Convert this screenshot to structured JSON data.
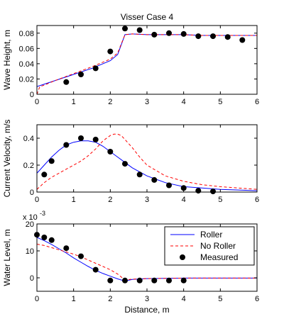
{
  "chart_data": [
    {
      "type": "line",
      "title": "Visser Case 4",
      "xlabel": "",
      "ylabel": "Wave Height, m",
      "xlim": [
        0,
        6
      ],
      "ylim": [
        0,
        0.09
      ],
      "xticks": [
        "0",
        "1",
        "2",
        "3",
        "4",
        "5",
        "6"
      ],
      "xtick_values": [
        0,
        1,
        2,
        3,
        4,
        5,
        6
      ],
      "yticks": [
        "0",
        "0.02",
        "0.04",
        "0.06",
        "0.08"
      ],
      "ytick_values": [
        0,
        0.02,
        0.04,
        0.06,
        0.08
      ],
      "multiplier": "",
      "grid": false,
      "series": [
        {
          "name": "Roller",
          "kind": "line",
          "color": "#0000ff",
          "dash": "solid",
          "x": [
            0.0,
            0.5,
            1.0,
            1.5,
            2.0,
            2.2,
            2.4,
            2.6,
            3.0,
            3.5,
            4.0,
            4.5,
            5.0,
            5.5,
            6.0
          ],
          "y": [
            0.01,
            0.018,
            0.026,
            0.034,
            0.044,
            0.052,
            0.078,
            0.079,
            0.078,
            0.078,
            0.078,
            0.077,
            0.077,
            0.077,
            0.077
          ]
        },
        {
          "name": "No Roller",
          "kind": "line",
          "color": "#ff0000",
          "dash": "4,3",
          "x": [
            0.0,
            0.08,
            0.2,
            0.5,
            1.0,
            1.5,
            2.0,
            2.2,
            2.4,
            2.6,
            3.0,
            3.5,
            4.0,
            4.5,
            5.0,
            5.5,
            6.0
          ],
          "y": [
            0.0,
            0.01,
            0.012,
            0.018,
            0.027,
            0.036,
            0.046,
            0.054,
            0.078,
            0.079,
            0.078,
            0.078,
            0.078,
            0.077,
            0.077,
            0.077,
            0.077
          ]
        },
        {
          "name": "Measured",
          "kind": "scatter",
          "color": "#000000",
          "x": [
            0.8,
            1.2,
            1.6,
            2.0,
            2.4,
            2.8,
            3.2,
            3.6,
            4.0,
            4.4,
            4.8,
            5.2,
            5.6
          ],
          "y": [
            0.016,
            0.026,
            0.034,
            0.056,
            0.086,
            0.084,
            0.078,
            0.08,
            0.079,
            0.076,
            0.076,
            0.075,
            0.071
          ]
        }
      ]
    },
    {
      "type": "line",
      "title": "",
      "xlabel": "",
      "ylabel": "Current Velocity, m/s",
      "xlim": [
        0,
        6
      ],
      "ylim": [
        0,
        0.5
      ],
      "xticks": [
        "0",
        "1",
        "2",
        "3",
        "4",
        "5",
        "6"
      ],
      "xtick_values": [
        0,
        1,
        2,
        3,
        4,
        5,
        6
      ],
      "yticks": [
        "0",
        "0.2",
        "0.4"
      ],
      "ytick_values": [
        0,
        0.2,
        0.4
      ],
      "multiplier": "",
      "grid": false,
      "series": [
        {
          "name": "Roller",
          "kind": "line",
          "color": "#0000ff",
          "dash": "solid",
          "x": [
            0.0,
            0.2,
            0.4,
            0.6,
            0.8,
            1.0,
            1.2,
            1.4,
            1.6,
            1.8,
            2.0,
            2.2,
            2.4,
            2.6,
            3.0,
            3.5,
            4.0,
            4.5,
            5.0,
            5.5,
            6.0
          ],
          "y": [
            0.14,
            0.2,
            0.26,
            0.31,
            0.35,
            0.37,
            0.38,
            0.38,
            0.37,
            0.34,
            0.3,
            0.26,
            0.22,
            0.18,
            0.12,
            0.07,
            0.04,
            0.03,
            0.02,
            0.015,
            0.01
          ]
        },
        {
          "name": "No Roller",
          "kind": "line",
          "color": "#ff0000",
          "dash": "4,3",
          "x": [
            0.0,
            0.2,
            0.4,
            0.6,
            0.8,
            1.0,
            1.2,
            1.4,
            1.6,
            1.8,
            2.0,
            2.1,
            2.2,
            2.3,
            2.4,
            2.6,
            2.8,
            3.0,
            3.5,
            4.0,
            4.5,
            5.0,
            5.5,
            6.0
          ],
          "y": [
            0.02,
            0.07,
            0.11,
            0.14,
            0.17,
            0.2,
            0.23,
            0.27,
            0.32,
            0.38,
            0.42,
            0.43,
            0.43,
            0.42,
            0.39,
            0.33,
            0.26,
            0.2,
            0.12,
            0.08,
            0.055,
            0.04,
            0.03,
            0.02
          ]
        },
        {
          "name": "Measured",
          "kind": "scatter",
          "color": "#000000",
          "x": [
            0.2,
            0.4,
            0.8,
            1.2,
            1.6,
            2.0,
            2.4,
            2.8,
            3.2,
            3.6,
            4.0,
            4.4,
            4.8
          ],
          "y": [
            0.13,
            0.23,
            0.35,
            0.4,
            0.39,
            0.3,
            0.21,
            0.13,
            0.09,
            0.05,
            0.03,
            0.01,
            0.005
          ]
        }
      ]
    },
    {
      "type": "line",
      "title": "",
      "xlabel": "Distance, m",
      "ylabel": "Water Level, m",
      "xlim": [
        0,
        6
      ],
      "ylim": [
        -5,
        20
      ],
      "xticks": [
        "0",
        "1",
        "2",
        "3",
        "4",
        "5",
        "6"
      ],
      "xtick_values": [
        0,
        1,
        2,
        3,
        4,
        5,
        6
      ],
      "yticks": [
        "0",
        "10",
        "20"
      ],
      "ytick_values": [
        0,
        10,
        20
      ],
      "multiplier": "x 10",
      "multiplier_exp": "-3",
      "grid": false,
      "legend": {
        "position": "top-right",
        "entries": [
          {
            "label": "Roller",
            "kind": "line",
            "color": "#0000ff",
            "dash": "solid"
          },
          {
            "label": "No Roller",
            "kind": "line",
            "color": "#ff0000",
            "dash": "4,3"
          },
          {
            "label": "Measured",
            "kind": "marker",
            "color": "#000000"
          }
        ]
      },
      "series": [
        {
          "name": "Roller",
          "kind": "line",
          "color": "#0000ff",
          "dash": "solid",
          "x": [
            0.0,
            0.2,
            0.4,
            0.6,
            0.8,
            1.0,
            1.2,
            1.4,
            1.6,
            1.8,
            2.0,
            2.2,
            2.4,
            2.6,
            3.0,
            3.5,
            4.0,
            4.5,
            5.0,
            5.5,
            6.0
          ],
          "y": [
            15.0,
            13.8,
            12.4,
            10.8,
            9.2,
            7.4,
            5.8,
            4.2,
            2.8,
            1.6,
            0.6,
            -0.4,
            -1.2,
            -0.6,
            -0.3,
            -0.2,
            -0.1,
            -0.1,
            -0.1,
            -0.1,
            -0.1
          ]
        },
        {
          "name": "No Roller",
          "kind": "line",
          "color": "#ff0000",
          "dash": "4,3",
          "x": [
            0.0,
            0.2,
            0.4,
            0.6,
            0.8,
            1.0,
            1.2,
            1.4,
            1.6,
            1.8,
            2.0,
            2.2,
            2.4,
            2.6,
            3.0,
            3.5,
            4.0,
            4.5,
            5.0,
            5.5,
            6.0
          ],
          "y": [
            12.5,
            12.0,
            11.2,
            10.4,
            9.6,
            8.8,
            7.8,
            6.6,
            5.4,
            4.2,
            3.0,
            1.4,
            -0.8,
            -0.5,
            -0.3,
            -0.2,
            -0.1,
            -0.1,
            -0.1,
            -0.1,
            -0.1
          ]
        },
        {
          "name": "Measured",
          "kind": "scatter",
          "color": "#000000",
          "x": [
            0.0,
            0.2,
            0.4,
            0.8,
            1.2,
            1.6,
            2.0,
            2.4,
            2.8,
            3.2,
            3.6,
            4.0
          ],
          "y": [
            16,
            15,
            14,
            11,
            8,
            3,
            -1,
            -1,
            -1,
            -1,
            -1,
            -1
          ]
        }
      ]
    }
  ]
}
